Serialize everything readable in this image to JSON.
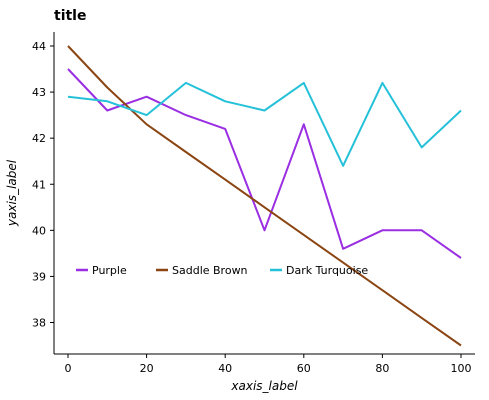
{
  "chart_data": {
    "type": "line",
    "title": "title",
    "xlabel": "xaxis_label",
    "ylabel": "yaxis_label",
    "xlim": [
      0,
      100
    ],
    "ylim": [
      37.5,
      44.5
    ],
    "x_ticks": [
      0,
      20,
      40,
      60,
      80,
      100
    ],
    "x_tick_labels": [
      "0",
      "20",
      "40",
      "60",
      "80",
      "100"
    ],
    "y_ticks": [
      38,
      39,
      40,
      41,
      42,
      43,
      44
    ],
    "y_tick_labels": [
      "38",
      "39",
      "40",
      "41",
      "42",
      "43",
      "44"
    ],
    "grid": false,
    "legend_position": "bottom",
    "series": [
      {
        "name": "Purple",
        "color": "#9a2ee2",
        "x": [
          0,
          10,
          20,
          30,
          40,
          50,
          60,
          70,
          80,
          90,
          100
        ],
        "y": [
          43.5,
          42.6,
          42.9,
          42.5,
          42.2,
          40.0,
          42.3,
          39.6,
          40.0,
          40.0,
          39.4
        ]
      },
      {
        "name": "Saddle Brown",
        "color": "#8b4513",
        "x": [
          0,
          10,
          20,
          30,
          40,
          50,
          60,
          70,
          80,
          90,
          100
        ],
        "y": [
          44.0,
          43.1,
          42.3,
          41.7,
          41.1,
          40.5,
          39.9,
          39.3,
          38.7,
          38.1,
          37.5
        ]
      },
      {
        "name": "Dark Turquoise",
        "color": "#25c1d9",
        "x": [
          0,
          10,
          20,
          30,
          40,
          50,
          60,
          70,
          80,
          90,
          100
        ],
        "y": [
          42.9,
          42.8,
          42.5,
          43.2,
          42.8,
          42.6,
          43.2,
          41.4,
          43.2,
          41.8,
          42.6
        ]
      }
    ]
  }
}
